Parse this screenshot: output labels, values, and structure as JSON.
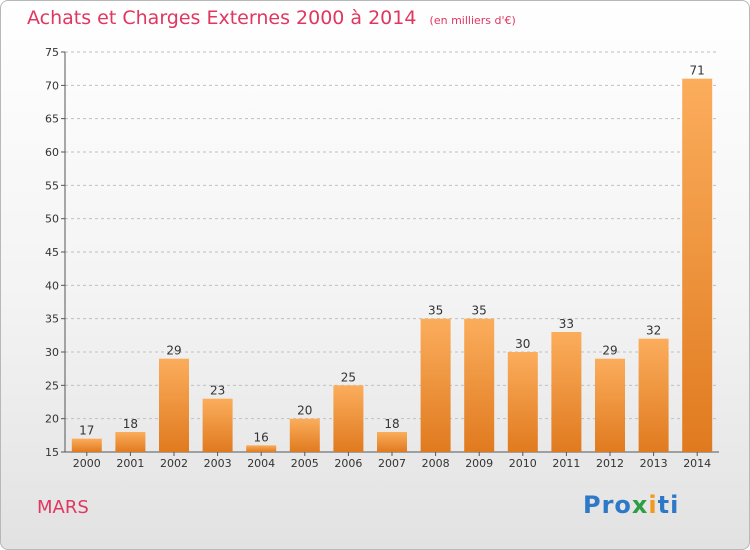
{
  "header": {
    "title": "Achats et Charges Externes 2000 à 2014",
    "subtitle": "(en milliers d'€)"
  },
  "footer": {
    "commune": "MARS",
    "logo": [
      "Pro",
      "x",
      "i",
      "ti"
    ]
  },
  "colors": {
    "title": "#e0365f",
    "bar_light": "#fbad5c",
    "bar_dark": "#e07a1f",
    "grid": "#c0c0c0"
  },
  "chart_data": {
    "type": "bar",
    "title": "Achats et Charges Externes 2000 à 2014",
    "subtitle": "(en milliers d'€)",
    "categories": [
      "2000",
      "2001",
      "2002",
      "2003",
      "2004",
      "2005",
      "2006",
      "2007",
      "2008",
      "2009",
      "2010",
      "2011",
      "2012",
      "2013",
      "2014"
    ],
    "values": [
      17,
      18,
      29,
      23,
      16,
      20,
      25,
      18,
      35,
      35,
      30,
      33,
      29,
      32,
      71
    ],
    "ylim": [
      15,
      75
    ],
    "yticks": [
      15,
      20,
      25,
      30,
      35,
      40,
      45,
      50,
      55,
      60,
      65,
      70,
      75
    ],
    "grid": "dashed-horizontal",
    "legend": "none"
  }
}
